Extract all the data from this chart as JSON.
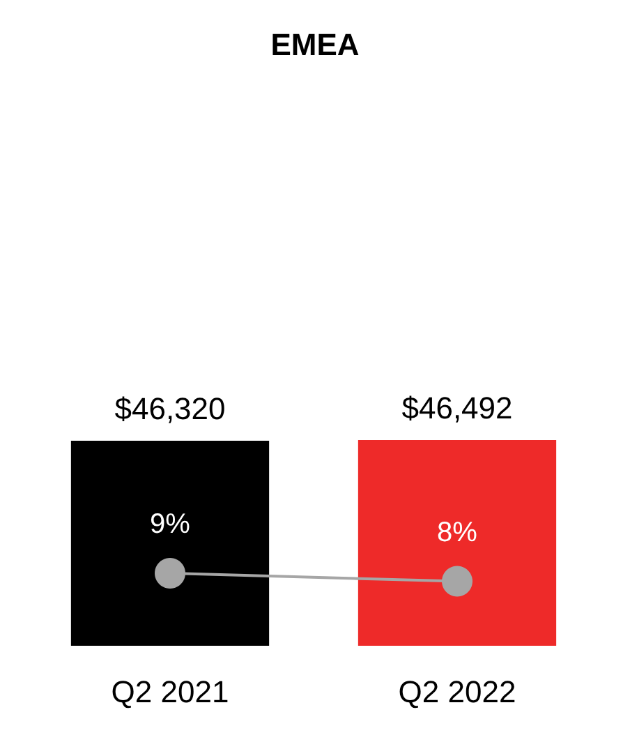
{
  "chart_data": {
    "type": "bar",
    "title": "EMEA",
    "categories": [
      "Q2 2021",
      "Q2 2022"
    ],
    "series": [
      {
        "colors": [
          "#000000",
          "#ee2a29"
        ],
        "values": [
          46320,
          46492
        ],
        "value_labels": [
          "$46,320",
          "$46,492"
        ]
      },
      {
        "type": "line",
        "axis": "y2",
        "color": "#a6a6a6",
        "marker": "circle",
        "values": [
          9,
          8
        ],
        "value_labels": [
          "9%",
          "8%"
        ]
      }
    ],
    "tick_labels": "x"
  }
}
